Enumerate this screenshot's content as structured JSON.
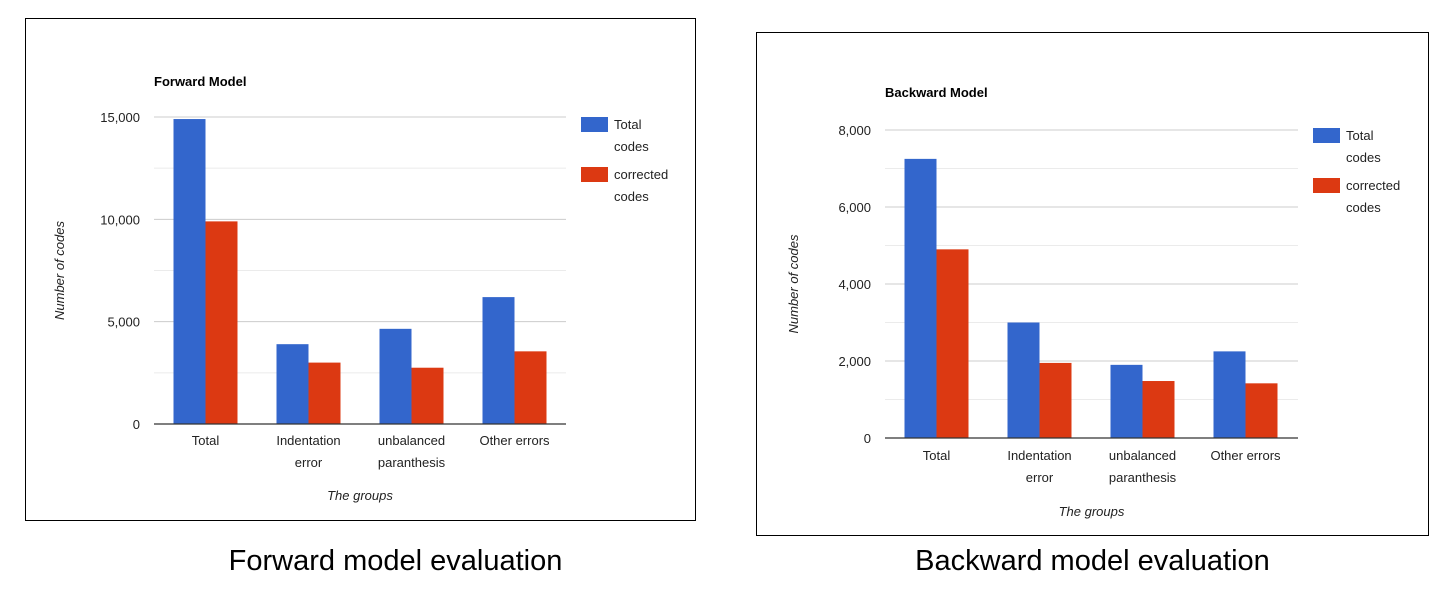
{
  "chart_data": [
    {
      "type": "bar",
      "title": "Forward Model",
      "xlabel": "The groups",
      "ylabel": "Number of codes",
      "categories": [
        [
          "Total"
        ],
        [
          "Indentation",
          "error"
        ],
        [
          "unbalanced",
          "paranthesis"
        ],
        [
          "Other errors"
        ]
      ],
      "ylim": [
        0,
        15000
      ],
      "yticks": [
        0,
        5000,
        10000,
        15000
      ],
      "ytick_labels": [
        "0",
        "5,000",
        "10,000",
        "15,000"
      ],
      "minor_gridlines": [
        2500,
        7500,
        12500
      ],
      "series": [
        {
          "name": [
            "Total",
            "codes"
          ],
          "color": "#3366cc",
          "values": [
            14900,
            3900,
            4650,
            6200
          ]
        },
        {
          "name": [
            "corrected",
            "codes"
          ],
          "color": "#dc3912",
          "values": [
            9900,
            3000,
            2750,
            3550
          ]
        }
      ],
      "legend": "right",
      "caption": "Forward model evaluation"
    },
    {
      "type": "bar",
      "title": "Backward Model",
      "xlabel": "The groups",
      "ylabel": "Number of codes",
      "categories": [
        [
          "Total"
        ],
        [
          "Indentation",
          "error"
        ],
        [
          "unbalanced",
          "paranthesis"
        ],
        [
          "Other errors"
        ]
      ],
      "ylim": [
        0,
        8000
      ],
      "yticks": [
        0,
        2000,
        4000,
        6000,
        8000
      ],
      "ytick_labels": [
        "0",
        "2,000",
        "4,000",
        "6,000",
        "8,000"
      ],
      "minor_gridlines": [
        1000,
        3000,
        5000,
        7000
      ],
      "series": [
        {
          "name": [
            "Total",
            "codes"
          ],
          "color": "#3366cc",
          "values": [
            7250,
            3000,
            1900,
            2250
          ]
        },
        {
          "name": [
            "corrected",
            "codes"
          ],
          "color": "#dc3912",
          "values": [
            4900,
            1950,
            1480,
            1420
          ]
        }
      ],
      "legend": "right",
      "caption": "Backward model evaluation"
    }
  ]
}
